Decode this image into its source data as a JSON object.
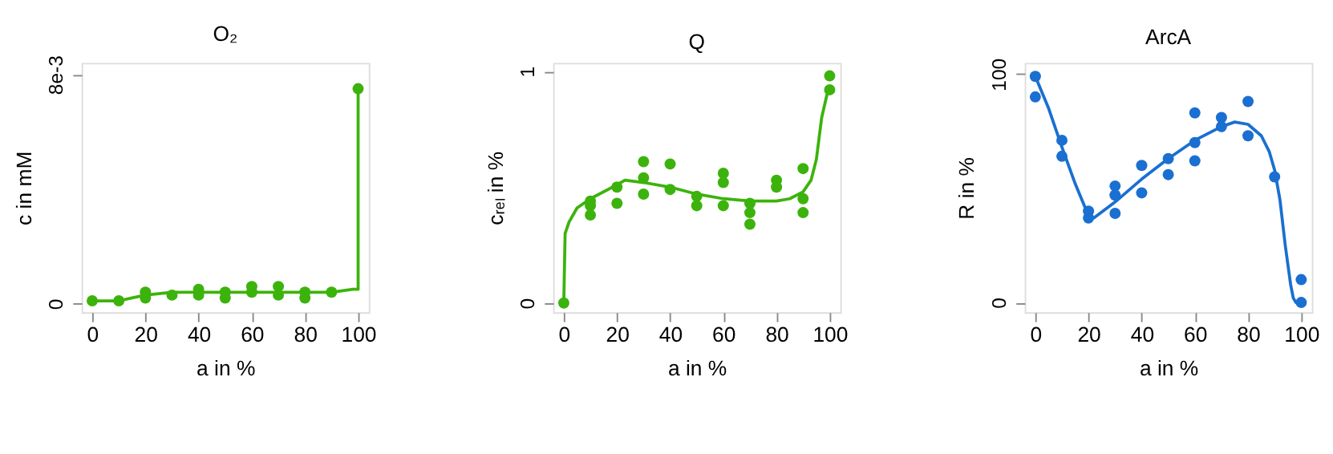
{
  "chart_data": [
    {
      "type": "scatter",
      "title": "O₂",
      "xlabel": "a  in  %",
      "ylabel": "c  in  mM",
      "xlim": [
        -4,
        104
      ],
      "ylim": [
        -0.0003,
        0.0084
      ],
      "xticks": [
        0,
        20,
        40,
        60,
        80,
        100
      ],
      "yticks": [
        0,
        {
          "value": 0.008,
          "label": "8e-3"
        }
      ],
      "grid": false,
      "legend": false,
      "marker": "circle",
      "line_style": "solid",
      "series": [
        {
          "color": "#3cb30c",
          "x": [
            0,
            10,
            20,
            20,
            30,
            40,
            40,
            50,
            50,
            60,
            60,
            70,
            70,
            80,
            80,
            90,
            100
          ],
          "values": [
            0.0001,
            0.0001,
            0.0004,
            0.0002,
            0.0003,
            0.0005,
            0.0003,
            0.0004,
            0.0002,
            0.0006,
            0.0004,
            0.0006,
            0.0003,
            0.0004,
            0.0002,
            0.0004,
            0.0075
          ]
        },
        {
          "type": "line",
          "marker": "none",
          "color": "#3cb30c",
          "x": [
            0,
            10,
            15,
            20,
            30,
            40,
            50,
            60,
            70,
            80,
            90,
            98,
            100,
            100
          ],
          "values": [
            0.0001,
            0.0001,
            0.0002,
            0.0003,
            0.0004,
            0.0004,
            0.0004,
            0.0004,
            0.0004,
            0.0004,
            0.0004,
            0.0005,
            0.0005,
            0.0075
          ]
        }
      ]
    },
    {
      "type": "scatter",
      "title": "Q",
      "xlabel": "a  in  %",
      "ylabel": "cᵣₑₗ  in  %",
      "xlim": [
        -4,
        104
      ],
      "ylim": [
        -0.04,
        1.036
      ],
      "xticks": [
        0,
        20,
        40,
        60,
        80,
        100
      ],
      "yticks": [
        0,
        1
      ],
      "grid": false,
      "legend": false,
      "marker": "circle",
      "line_style": "solid",
      "series": [
        {
          "color": "#3cb30c",
          "x": [
            0,
            10,
            10,
            10,
            20,
            20,
            30,
            30,
            30,
            40,
            40,
            50,
            50,
            60,
            60,
            60,
            70,
            70,
            70,
            80,
            80,
            90,
            90,
            90,
            100,
            100
          ],
          "values": [
            0,
            0.44,
            0.42,
            0.38,
            0.5,
            0.43,
            0.61,
            0.54,
            0.47,
            0.6,
            0.49,
            0.46,
            0.42,
            0.56,
            0.52,
            0.42,
            0.43,
            0.39,
            0.34,
            0.53,
            0.5,
            0.58,
            0.45,
            0.39,
            0.98,
            0.92
          ]
        },
        {
          "type": "line",
          "marker": "none",
          "color": "#3cb30c",
          "x": [
            0,
            0.5,
            2,
            5,
            10,
            20,
            23,
            30,
            40,
            50,
            60,
            70,
            80,
            85,
            90,
            93,
            95,
            97,
            99,
            100
          ],
          "values": [
            0,
            0.3,
            0.35,
            0.41,
            0.45,
            0.51,
            0.53,
            0.52,
            0.5,
            0.47,
            0.45,
            0.44,
            0.44,
            0.45,
            0.48,
            0.53,
            0.62,
            0.8,
            0.9,
            0.94
          ]
        }
      ]
    },
    {
      "type": "scatter",
      "title": "ArcA",
      "xlabel": "a  in  %",
      "ylabel": "R  in  %",
      "xlim": [
        -4,
        104
      ],
      "ylim": [
        -4.3,
        104.9
      ],
      "xticks": [
        0,
        20,
        40,
        60,
        80,
        100
      ],
      "yticks": [
        0,
        100
      ],
      "grid": false,
      "legend": false,
      "marker": "circle",
      "line_style": "solid",
      "series": [
        {
          "color": "#1a6fd1",
          "x": [
            0,
            0,
            10,
            10,
            20,
            20,
            30,
            30,
            30,
            40,
            40,
            50,
            50,
            60,
            60,
            60,
            70,
            70,
            80,
            80,
            90,
            100,
            100
          ],
          "values": [
            99,
            90,
            71,
            64,
            40,
            37,
            51,
            47,
            39,
            60,
            48,
            63,
            56,
            83,
            70,
            62,
            81,
            77,
            88,
            73,
            55,
            10,
            0
          ]
        },
        {
          "type": "line",
          "marker": "none",
          "color": "#1a6fd1",
          "x": [
            0,
            5,
            10,
            15,
            20,
            22,
            30,
            40,
            50,
            60,
            70,
            75,
            80,
            85,
            88,
            90,
            92,
            94,
            96,
            97,
            98,
            100
          ],
          "values": [
            99,
            85,
            68,
            52,
            38,
            37,
            44,
            54,
            63,
            71,
            77,
            79,
            78,
            73,
            66,
            58,
            45,
            25,
            8,
            2,
            0,
            0
          ]
        }
      ]
    }
  ]
}
